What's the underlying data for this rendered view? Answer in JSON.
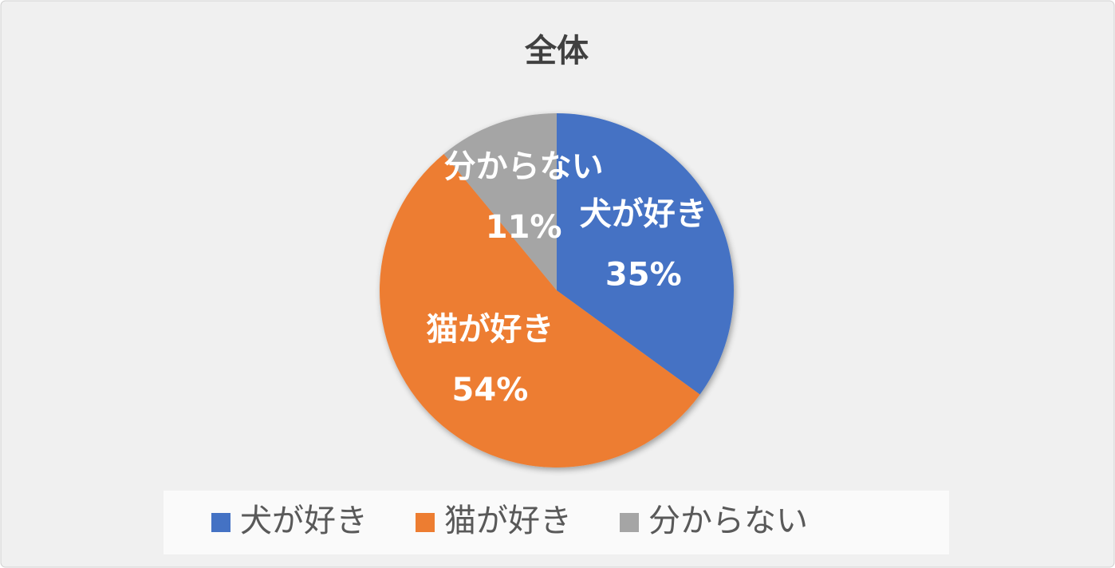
{
  "chart_data": {
    "type": "pie",
    "title": "全体",
    "categories": [
      "犬が好き",
      "猫が好き",
      "分からない"
    ],
    "values": [
      35,
      54,
      11
    ],
    "value_labels": [
      "35%",
      "54%",
      "11%"
    ],
    "colors": [
      "#4472c4",
      "#ed7d31",
      "#a5a5a5"
    ],
    "legend": "bottom"
  }
}
